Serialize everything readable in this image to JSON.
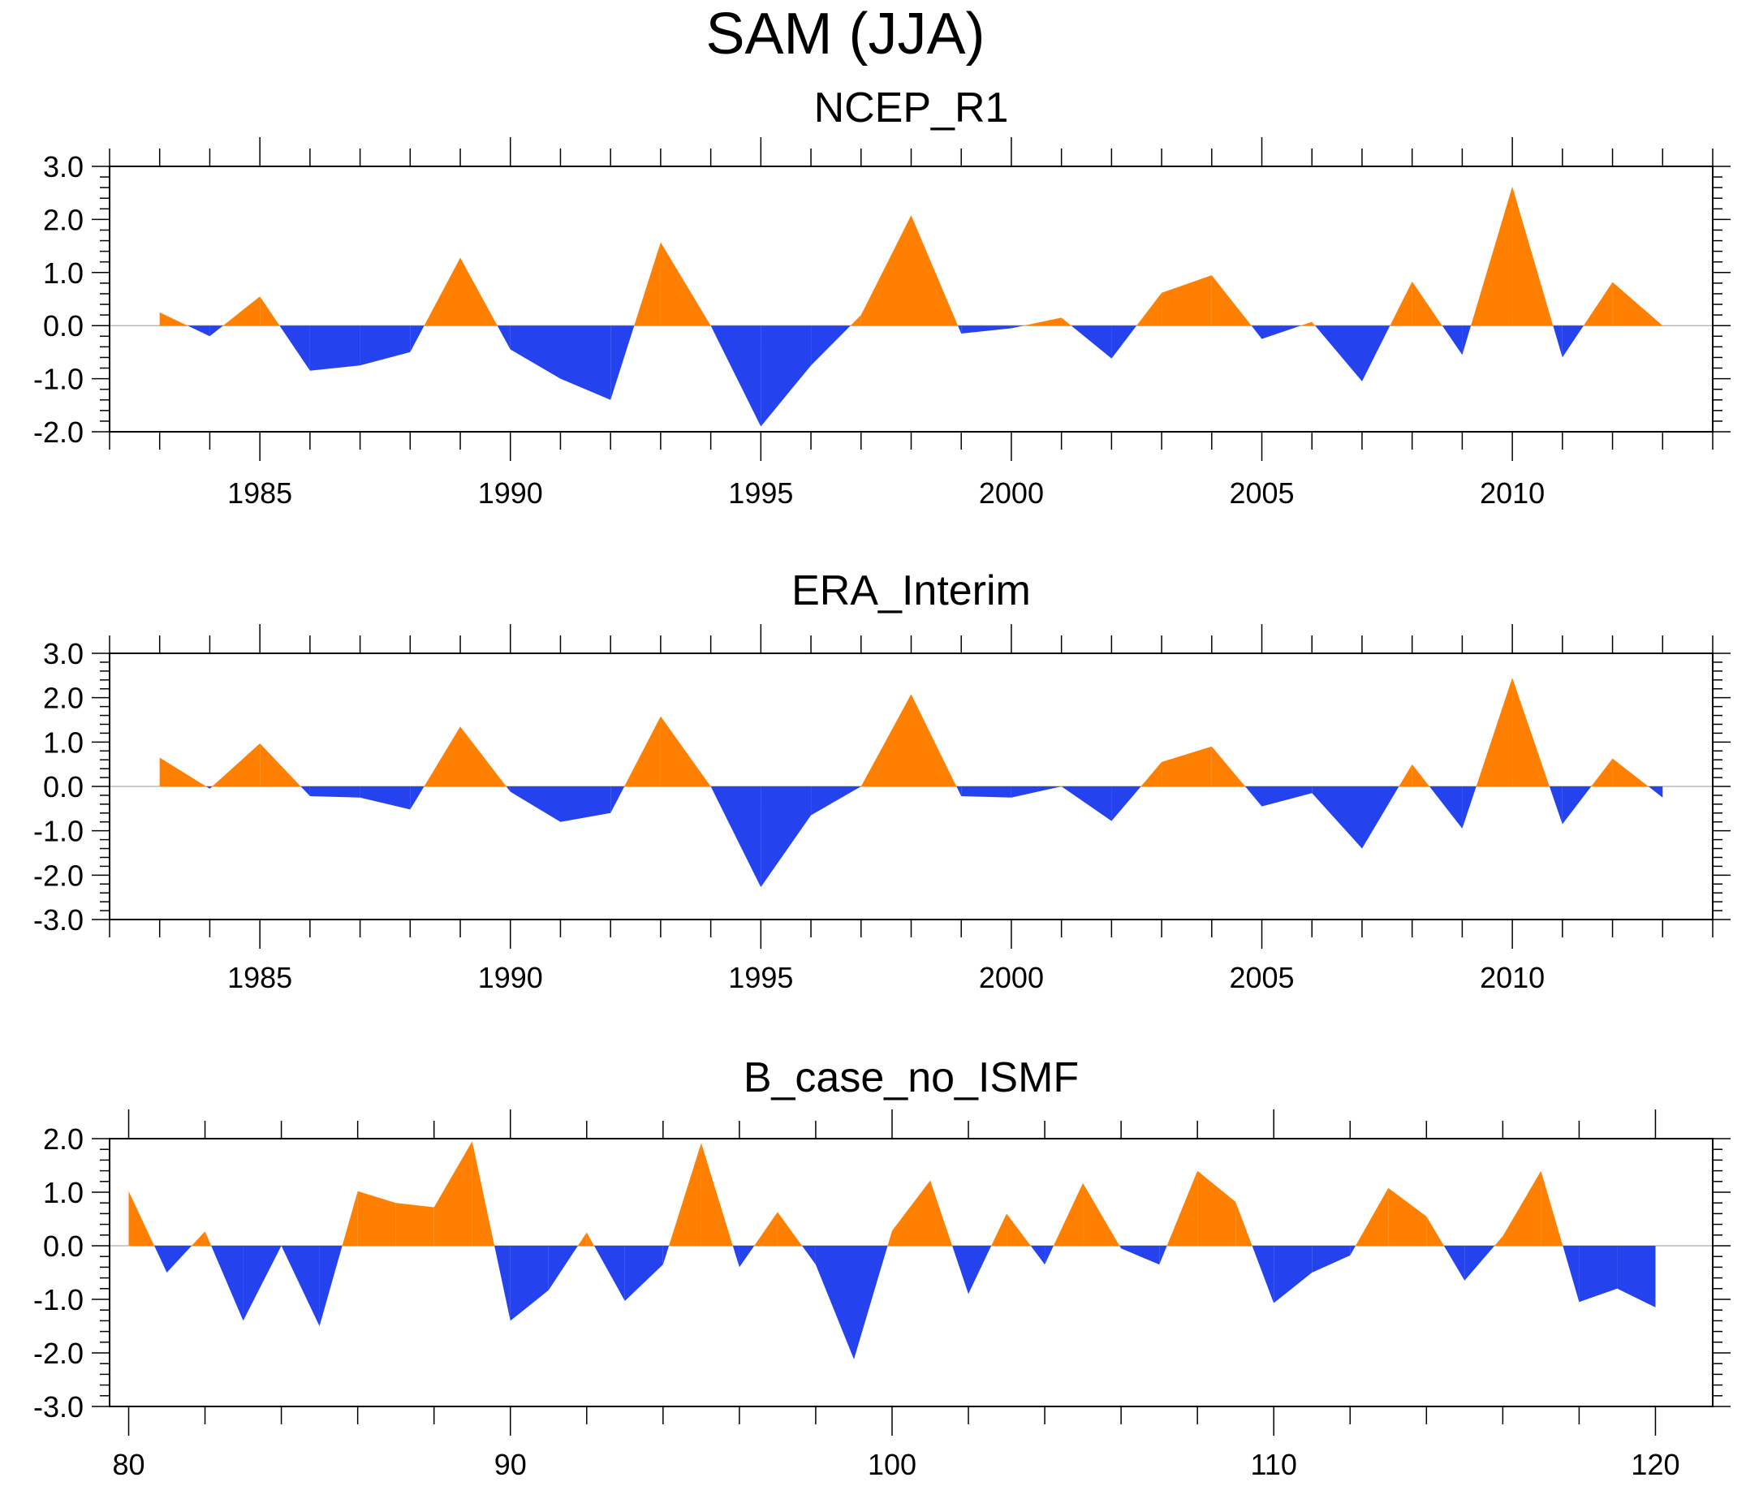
{
  "title": "SAM (JJA)",
  "colors": {
    "positive": "#FF8000",
    "negative": "#2443EE",
    "frame": "#000000",
    "zero_line": "#bbbbbb"
  },
  "chart_data": [
    {
      "type": "area",
      "title": "NCEP_R1",
      "xlabel": "",
      "ylabel": "",
      "xlim": [
        1982,
        2014
      ],
      "ylim": [
        -2.0,
        3.0
      ],
      "y_ticks": [
        -2.0,
        -1.0,
        0.0,
        1.0,
        2.0,
        3.0
      ],
      "y_tick_labels": [
        "-2.0",
        "-1.0",
        "0.0",
        "1.0",
        "2.0",
        "3.0"
      ],
      "x_ticks": [
        1985,
        1990,
        1995,
        2000,
        2005,
        2010
      ],
      "x_tick_labels": [
        "1985",
        "1990",
        "1995",
        "2000",
        "2005",
        "2010"
      ],
      "x": [
        1983,
        1984,
        1985,
        1986,
        1987,
        1988,
        1989,
        1990,
        1991,
        1992,
        1993,
        1994,
        1995,
        1996,
        1997,
        1998,
        1999,
        2000,
        2001,
        2002,
        2003,
        2004,
        2005,
        2006,
        2007,
        2008,
        2009,
        2010,
        2011,
        2012,
        2013
      ],
      "values": [
        0.25,
        -0.2,
        0.55,
        -0.85,
        -0.75,
        -0.5,
        1.28,
        -0.45,
        -1.0,
        -1.4,
        1.57,
        0.0,
        -1.9,
        -0.75,
        0.2,
        2.08,
        -0.15,
        -0.05,
        0.15,
        -0.62,
        0.62,
        0.95,
        -0.25,
        0.07,
        -1.05,
        0.83,
        -0.55,
        2.62,
        -0.6,
        0.82,
        0.0
      ]
    },
    {
      "type": "area",
      "title": "ERA_Interim",
      "xlabel": "",
      "ylabel": "",
      "xlim": [
        1982,
        2014
      ],
      "ylim": [
        -3.0,
        3.0
      ],
      "y_ticks": [
        -3.0,
        -2.0,
        -1.0,
        0.0,
        1.0,
        2.0,
        3.0
      ],
      "y_tick_labels": [
        "-3.0",
        "-2.0",
        "-1.0",
        "0.0",
        "1.0",
        "2.0",
        "3.0"
      ],
      "x_ticks": [
        1985,
        1990,
        1995,
        2000,
        2005,
        2010
      ],
      "x_tick_labels": [
        "1985",
        "1990",
        "1995",
        "2000",
        "2005",
        "2010"
      ],
      "x": [
        1983,
        1984,
        1985,
        1986,
        1987,
        1988,
        1989,
        1990,
        1991,
        1992,
        1993,
        1994,
        1995,
        1996,
        1997,
        1998,
        1999,
        2000,
        2001,
        2002,
        2003,
        2004,
        2005,
        2006,
        2007,
        2008,
        2009,
        2010,
        2011,
        2012,
        2013
      ],
      "values": [
        0.65,
        -0.05,
        0.97,
        -0.22,
        -0.25,
        -0.52,
        1.35,
        -0.12,
        -0.8,
        -0.6,
        1.58,
        0.0,
        -2.27,
        -0.65,
        0.0,
        2.08,
        -0.22,
        -0.25,
        0.0,
        -0.78,
        0.55,
        0.9,
        -0.45,
        -0.15,
        -1.4,
        0.5,
        -0.95,
        2.45,
        -0.85,
        0.63,
        -0.25
      ]
    },
    {
      "type": "area",
      "title": "B_case_no_ISMF",
      "xlabel": "",
      "ylabel": "",
      "xlim": [
        79.5,
        121.5
      ],
      "ylim": [
        -3.0,
        2.0
      ],
      "y_ticks": [
        -3.0,
        -2.0,
        -1.0,
        0.0,
        1.0,
        2.0
      ],
      "y_tick_labels": [
        "-3.0",
        "-2.0",
        "-1.0",
        "0.0",
        "1.0",
        "2.0"
      ],
      "x_ticks": [
        80,
        90,
        100,
        110,
        120
      ],
      "x_tick_labels": [
        "80",
        "90",
        "100",
        "110",
        "120"
      ],
      "x": [
        80,
        81,
        82,
        83,
        84,
        85,
        86,
        87,
        88,
        89,
        90,
        91,
        92,
        93,
        94,
        95,
        96,
        97,
        98,
        99,
        100,
        101,
        102,
        103,
        104,
        105,
        106,
        107,
        108,
        109,
        110,
        111,
        112,
        113,
        114,
        115,
        116,
        117,
        118,
        119,
        120
      ],
      "values": [
        1.02,
        -0.5,
        0.27,
        -1.4,
        0.0,
        -1.5,
        1.02,
        0.8,
        0.72,
        1.95,
        -1.4,
        -0.83,
        0.25,
        -1.03,
        -0.35,
        1.92,
        -0.4,
        0.63,
        -0.35,
        -2.12,
        0.28,
        1.22,
        -0.9,
        0.6,
        -0.35,
        1.17,
        -0.05,
        -0.35,
        1.4,
        0.82,
        -1.07,
        -0.5,
        -0.18,
        1.08,
        0.55,
        -0.65,
        0.18,
        1.4,
        -1.05,
        -0.8,
        -1.15
      ]
    }
  ]
}
